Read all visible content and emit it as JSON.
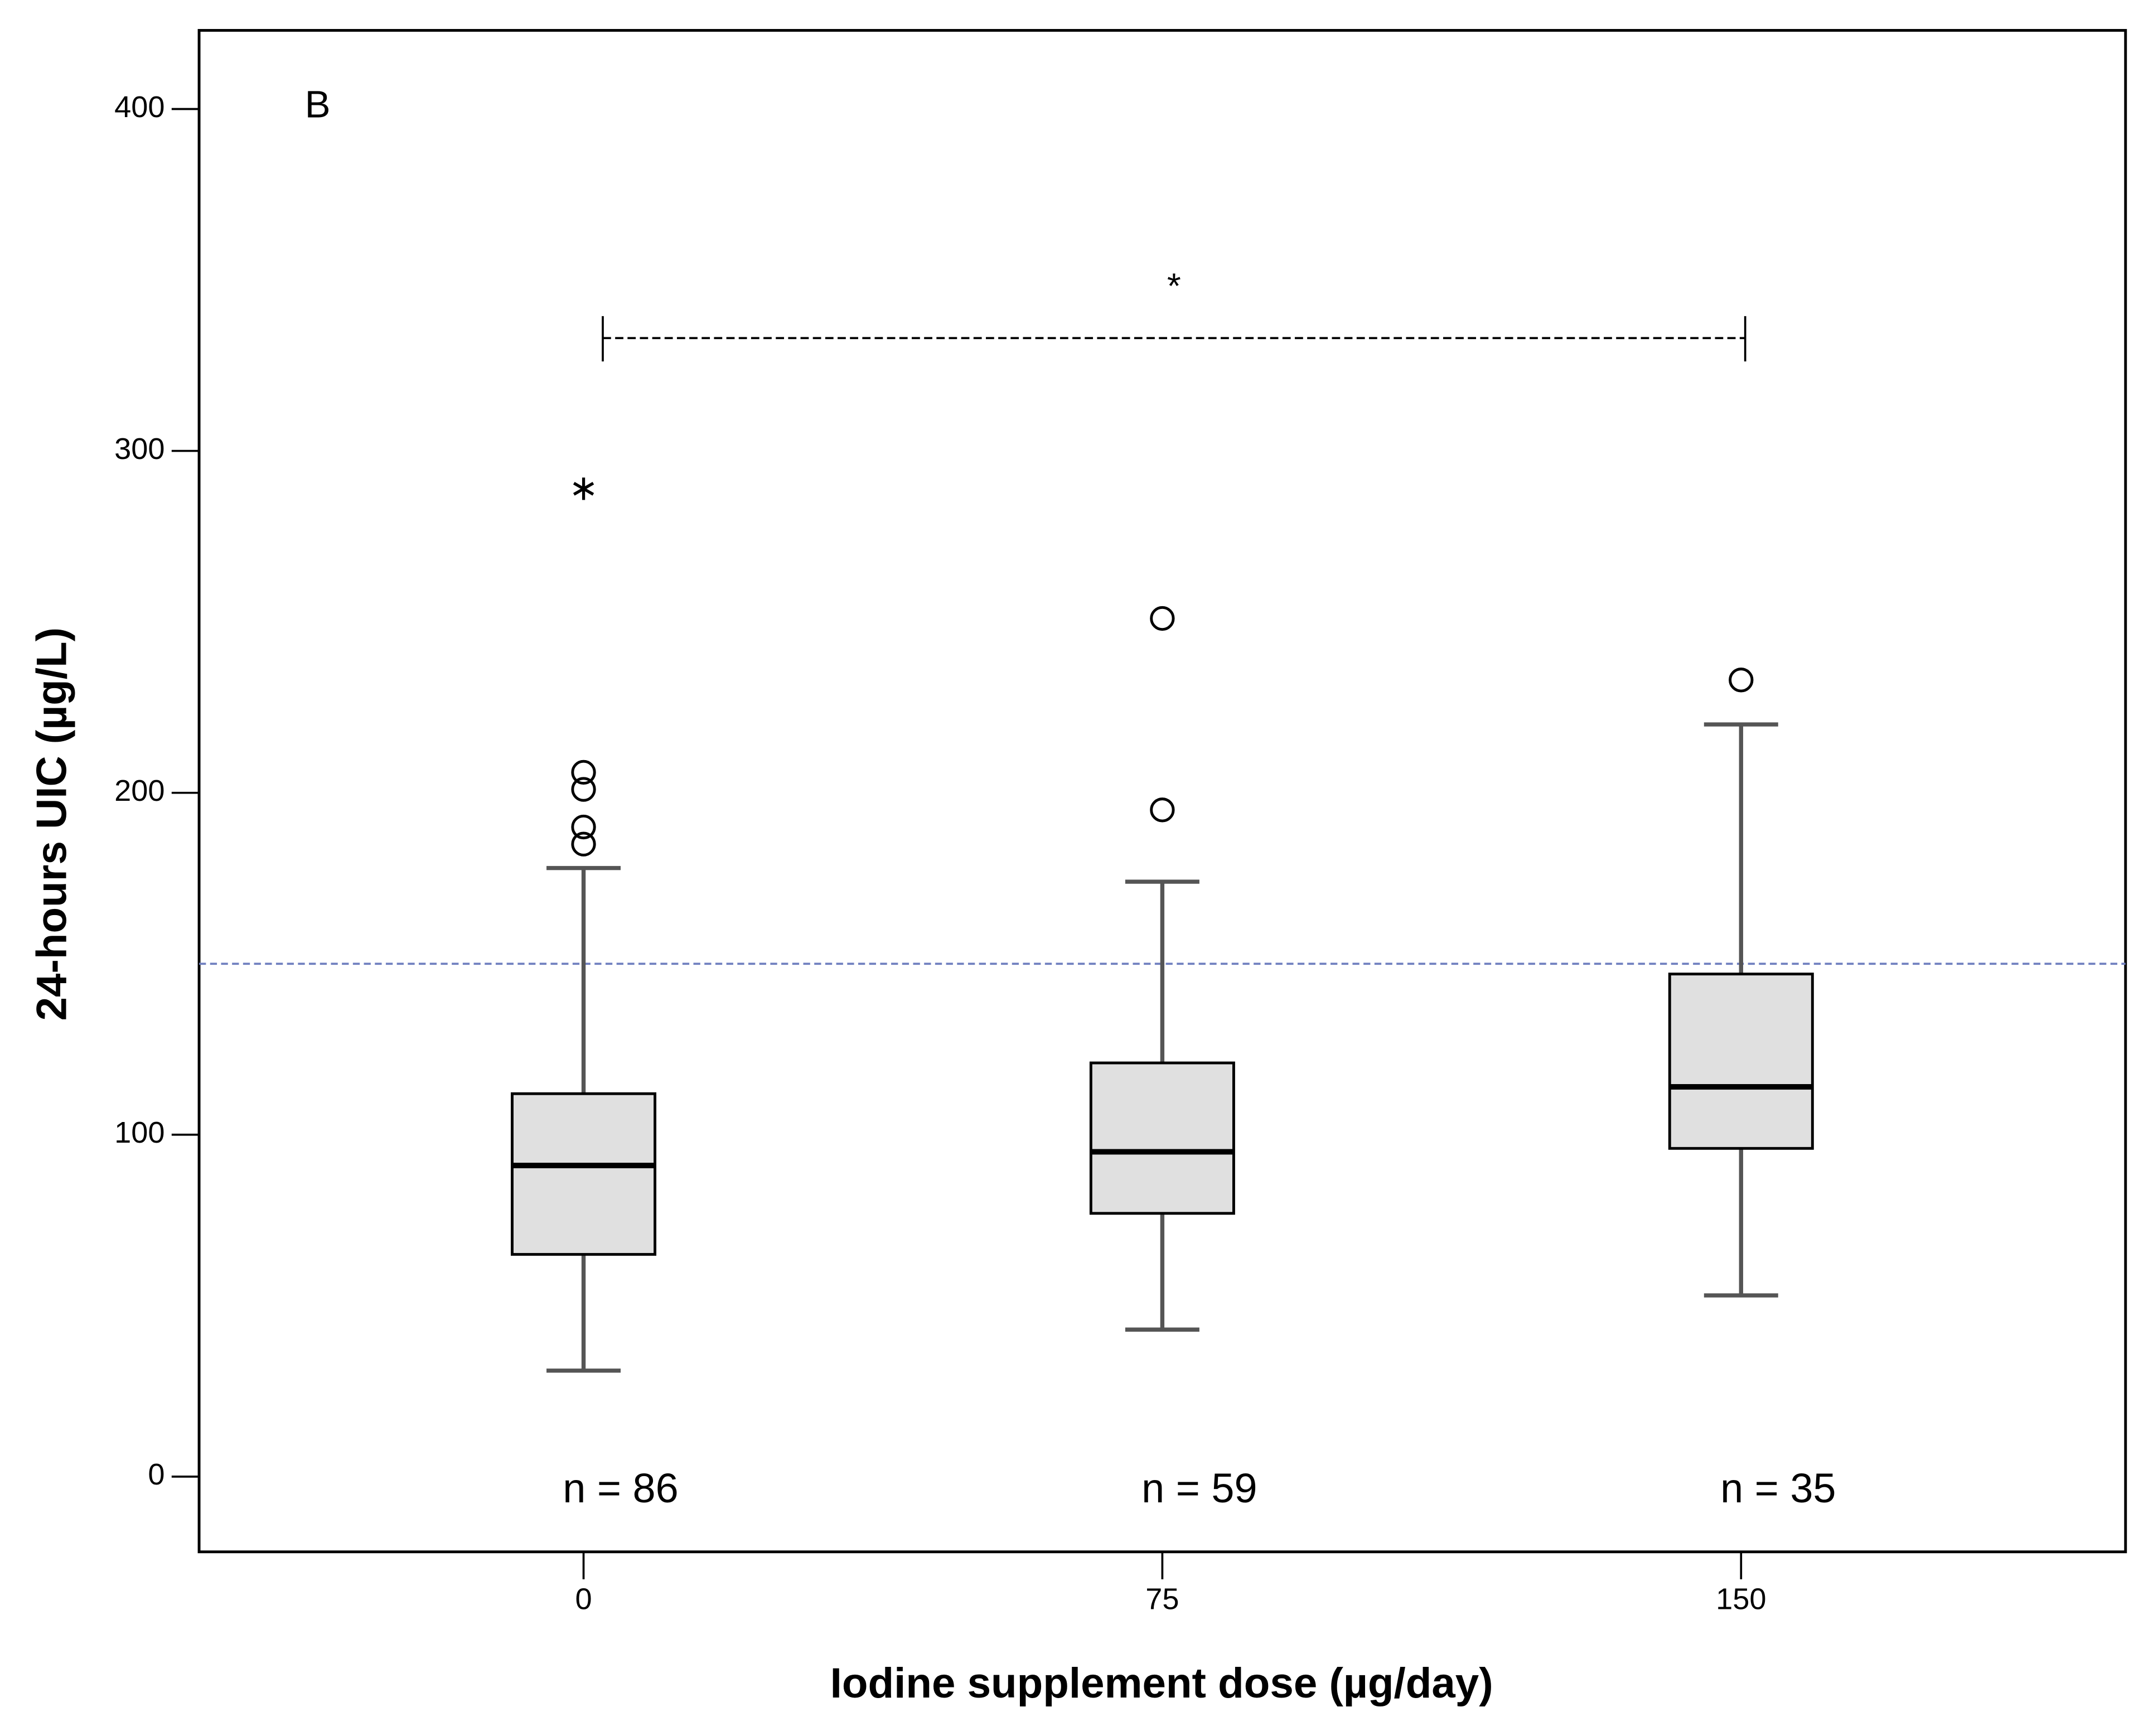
{
  "chart_data": {
    "type": "box",
    "panel_label": "B",
    "x_label": "Iodine supplement dose (µg/day)",
    "y_label": "24-hours UIC (µg/L)",
    "categories": [
      "0",
      "75",
      "150"
    ],
    "groups": [
      {
        "whisker_low": 31,
        "q1": 65,
        "median": 91,
        "q3": 112,
        "whisker_high": 178,
        "outliers": [
          206,
          201,
          190,
          185
        ],
        "extremes": [
          290
        ]
      },
      {
        "whisker_low": 43,
        "q1": 77,
        "median": 95,
        "q3": 121,
        "whisker_high": 174,
        "outliers": [
          195,
          251
        ],
        "extremes": []
      },
      {
        "whisker_low": 53,
        "q1": 96,
        "median": 114,
        "q3": 147,
        "whisker_high": 220,
        "outliers": [
          233
        ],
        "extremes": []
      }
    ],
    "n_labels": [
      "n = 86",
      "n = 59",
      "n = 35"
    ],
    "reference_line": 150,
    "reference_color": "#6f7fbf",
    "box_color": "#e0e0e0",
    "significance": {
      "label": "*",
      "y": 333,
      "from": "0",
      "to": "150"
    },
    "ylim": [
      -22,
      423
    ],
    "yticks": [
      0,
      100,
      200,
      300,
      400
    ]
  }
}
